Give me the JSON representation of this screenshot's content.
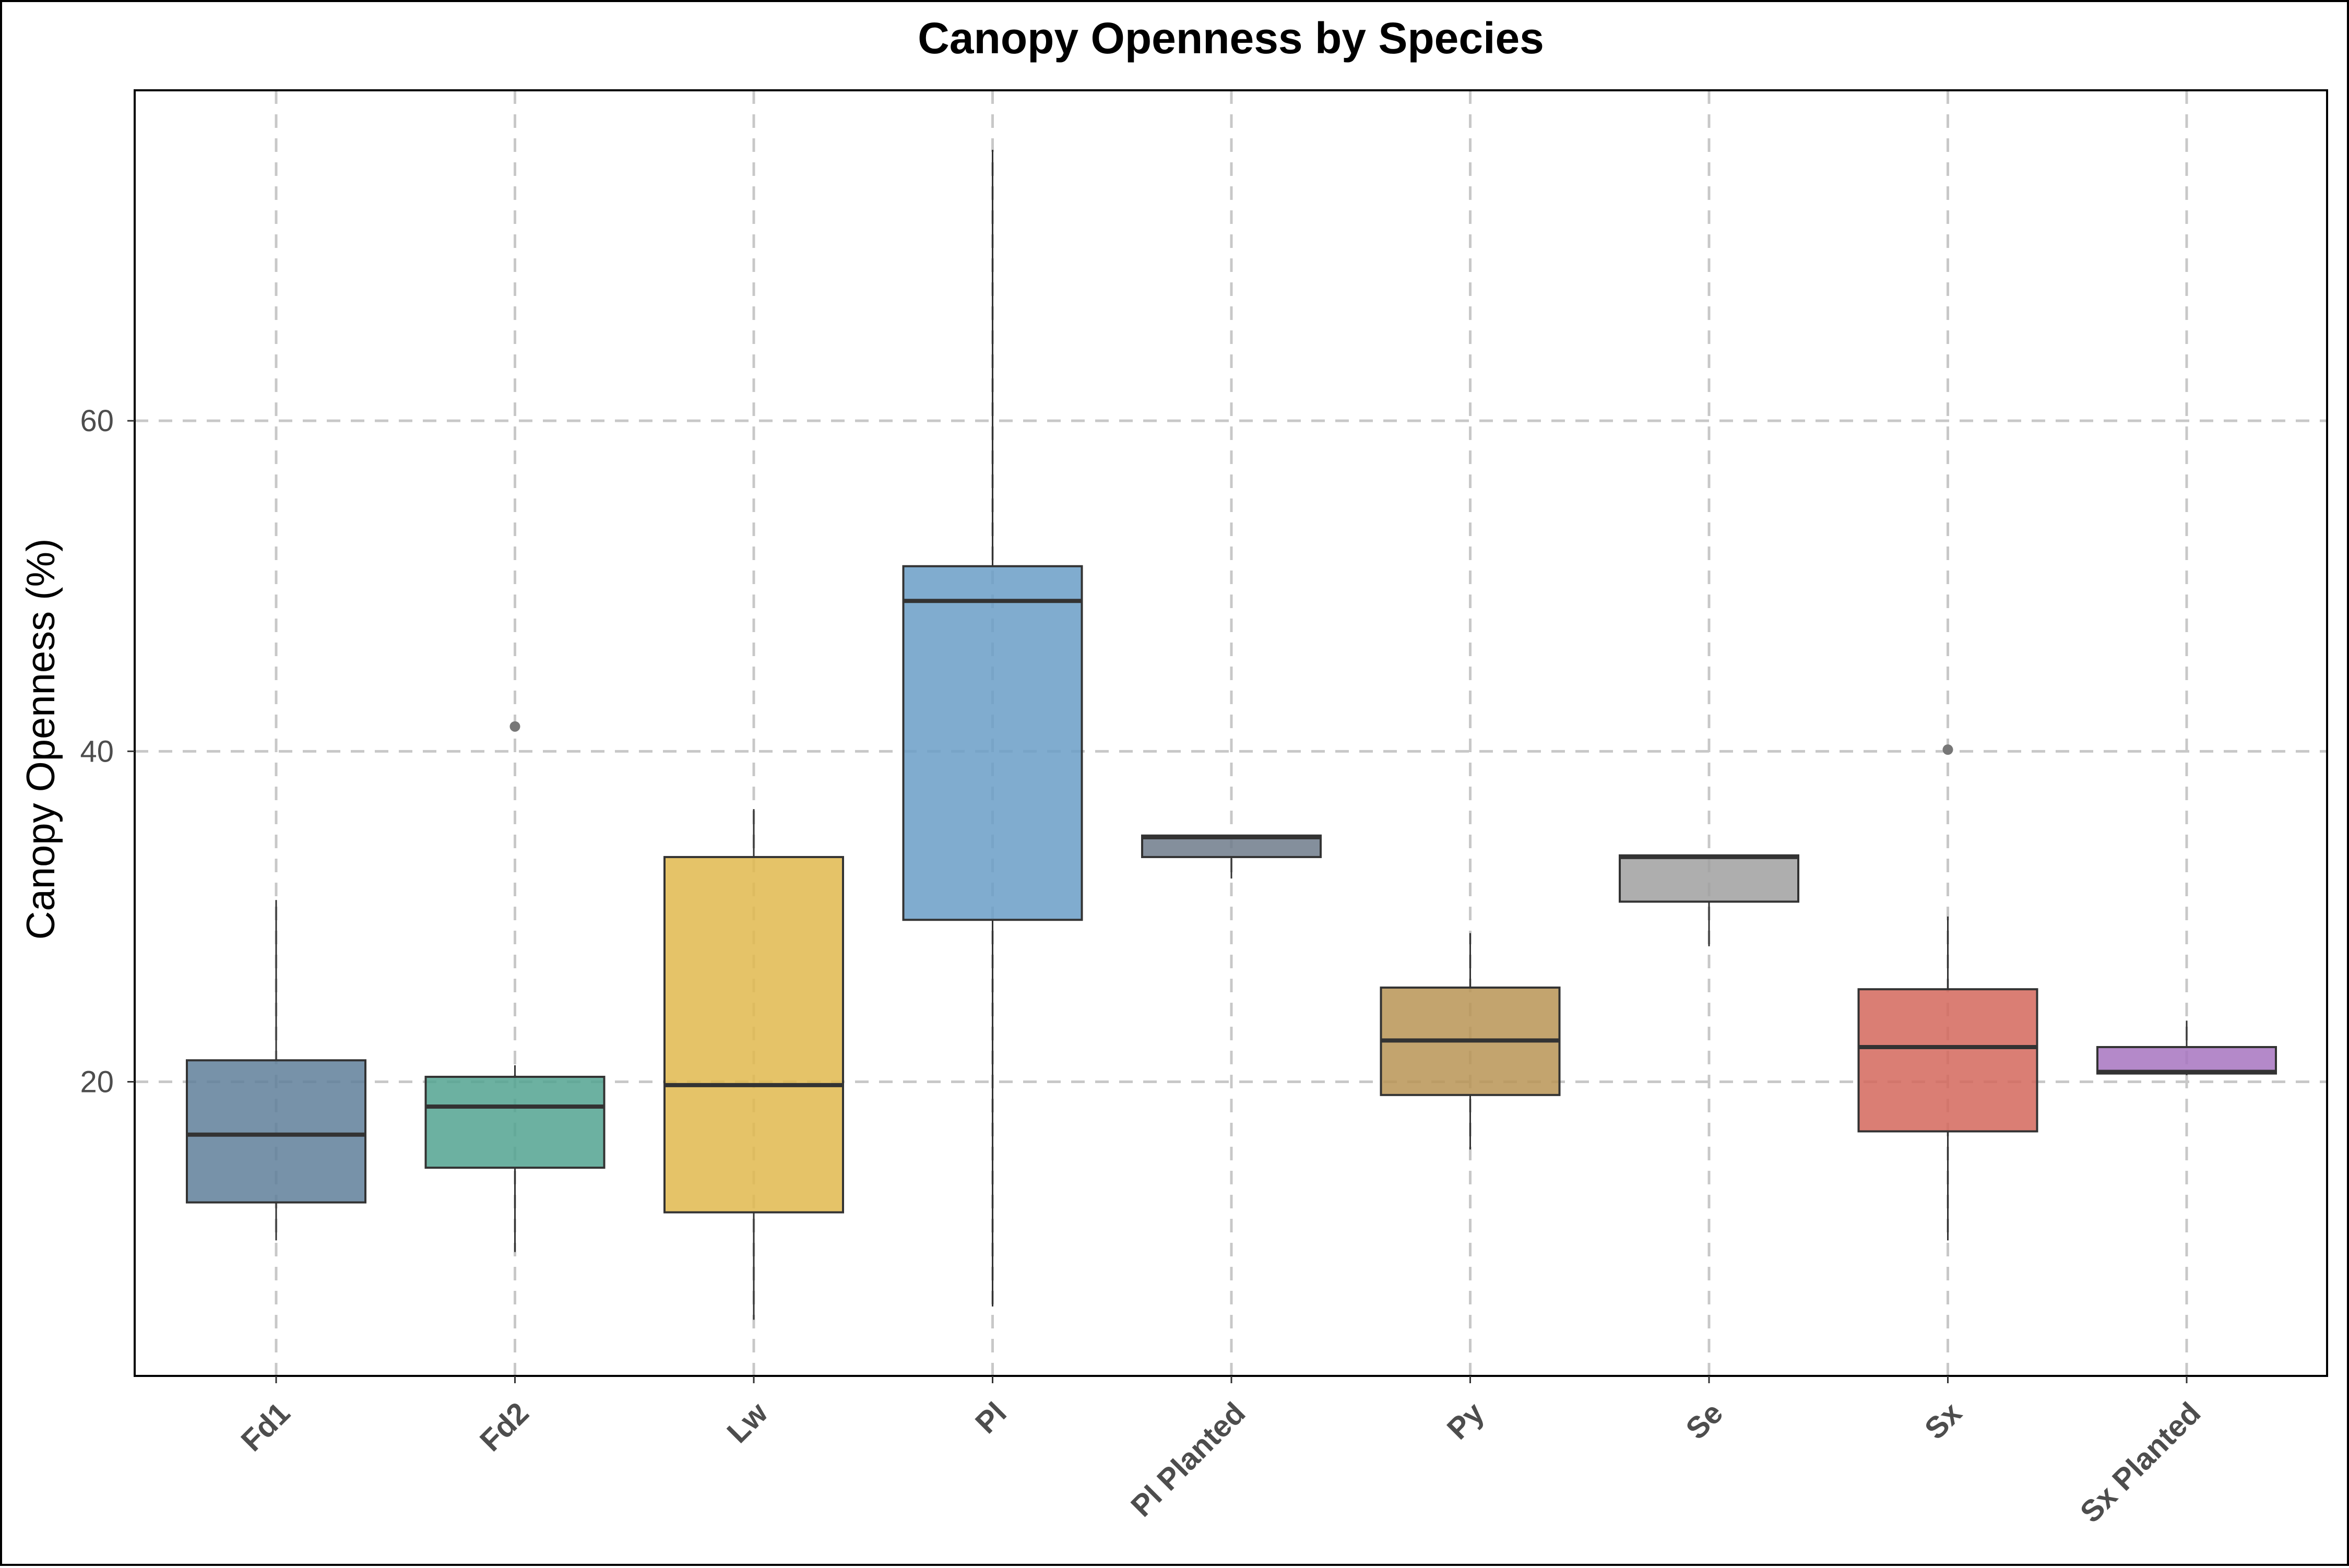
{
  "chart_data": {
    "type": "box",
    "title": "Canopy Openness by Species",
    "xlabel": "",
    "ylabel": "Canopy Openness (%)",
    "ylim": [
      2.2,
      80.0
    ],
    "yticks": [
      20,
      40,
      60
    ],
    "grid": true,
    "grid_style": "dashed",
    "legend": "none",
    "categories": [
      "Fd1",
      "Fd2",
      "Lw",
      "Pl",
      "Pl Planted",
      "Py",
      "Se",
      "Sx",
      "Sx Planted"
    ],
    "boxes": [
      {
        "category": "Fd1",
        "whisker_low": 10.4,
        "q1": 12.7,
        "median": 16.8,
        "q3": 21.3,
        "whisker_high": 31.0,
        "outliers": [],
        "color": "#5f7f9a"
      },
      {
        "category": "Fd2",
        "whisker_low": 9.7,
        "q1": 14.8,
        "median": 18.5,
        "q3": 20.3,
        "whisker_high": 21.0,
        "outliers": [
          41.5
        ],
        "color": "#52a391"
      },
      {
        "category": "Lw",
        "whisker_low": 5.6,
        "q1": 12.1,
        "median": 19.8,
        "q3": 33.6,
        "whisker_high": 36.5,
        "outliers": [],
        "color": "#e0b94e"
      },
      {
        "category": "Pl",
        "whisker_low": 6.4,
        "q1": 29.8,
        "median": 49.1,
        "q3": 51.2,
        "whisker_high": 76.4,
        "outliers": [],
        "color": "#6a9ec7"
      },
      {
        "category": "Pl Planted",
        "whisker_low": 32.3,
        "q1": 33.6,
        "median": 34.8,
        "q3": 34.9,
        "whisker_high": 34.9,
        "outliers": [],
        "color": "#6e7b8b"
      },
      {
        "category": "Py",
        "whisker_low": 15.9,
        "q1": 19.2,
        "median": 22.5,
        "q3": 25.7,
        "whisker_high": 29.0,
        "outliers": [],
        "color": "#b99455"
      },
      {
        "category": "Se",
        "whisker_low": 28.2,
        "q1": 30.9,
        "median": 33.6,
        "q3": 33.7,
        "whisker_high": 33.7,
        "outliers": [],
        "color": "#a0a0a0"
      },
      {
        "category": "Sx",
        "whisker_low": 10.4,
        "q1": 17.0,
        "median": 22.1,
        "q3": 25.6,
        "whisker_high": 30.0,
        "outliers": [
          40.1
        ],
        "color": "#d3675c"
      },
      {
        "category": "Sx Planted",
        "whisker_low": 20.4,
        "q1": 20.5,
        "median": 20.6,
        "q3": 22.1,
        "whisker_high": 23.7,
        "outliers": [],
        "color": "#a774bf"
      }
    ],
    "box_alpha": 0.85,
    "line_color": "#333333",
    "outlier_color": "#777777",
    "grid_color": "#c8c8c8"
  }
}
